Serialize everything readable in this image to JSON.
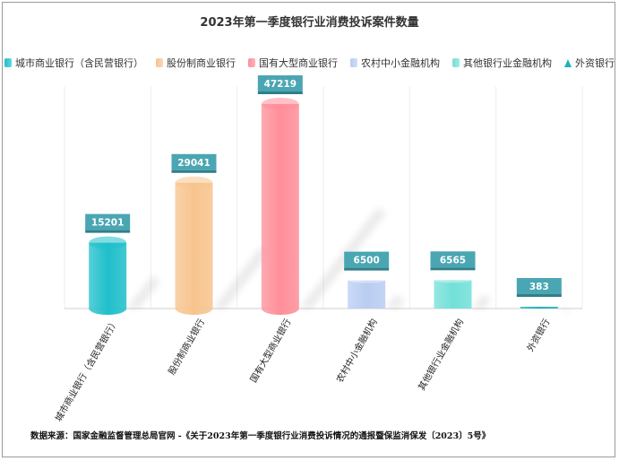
{
  "chart_data": {
    "type": "bar",
    "title": "2023年第一季度银行业消费投诉案件数量",
    "categories": [
      "城市商业银行（含民营银行）",
      "股份制商业银行",
      "国有大型商业银行",
      "农村中小金融机构",
      "其他银行业金融机构",
      "外资银行"
    ],
    "values": [
      15201,
      29041,
      47219,
      6500,
      6565,
      383
    ],
    "colors": [
      "#1fbfcb",
      "#f7c48e",
      "#ff8e99",
      "#b9cdf2",
      "#72e0d8",
      "#20b2b8"
    ],
    "ylim": [
      0,
      47219
    ],
    "grid": false,
    "legend_position": "top",
    "source": "数据来源：国家金融监督管理总局官网 -《关于2023年第一季度银行业消费投诉情况的通报暨保监消保发〔2023〕5号》"
  }
}
